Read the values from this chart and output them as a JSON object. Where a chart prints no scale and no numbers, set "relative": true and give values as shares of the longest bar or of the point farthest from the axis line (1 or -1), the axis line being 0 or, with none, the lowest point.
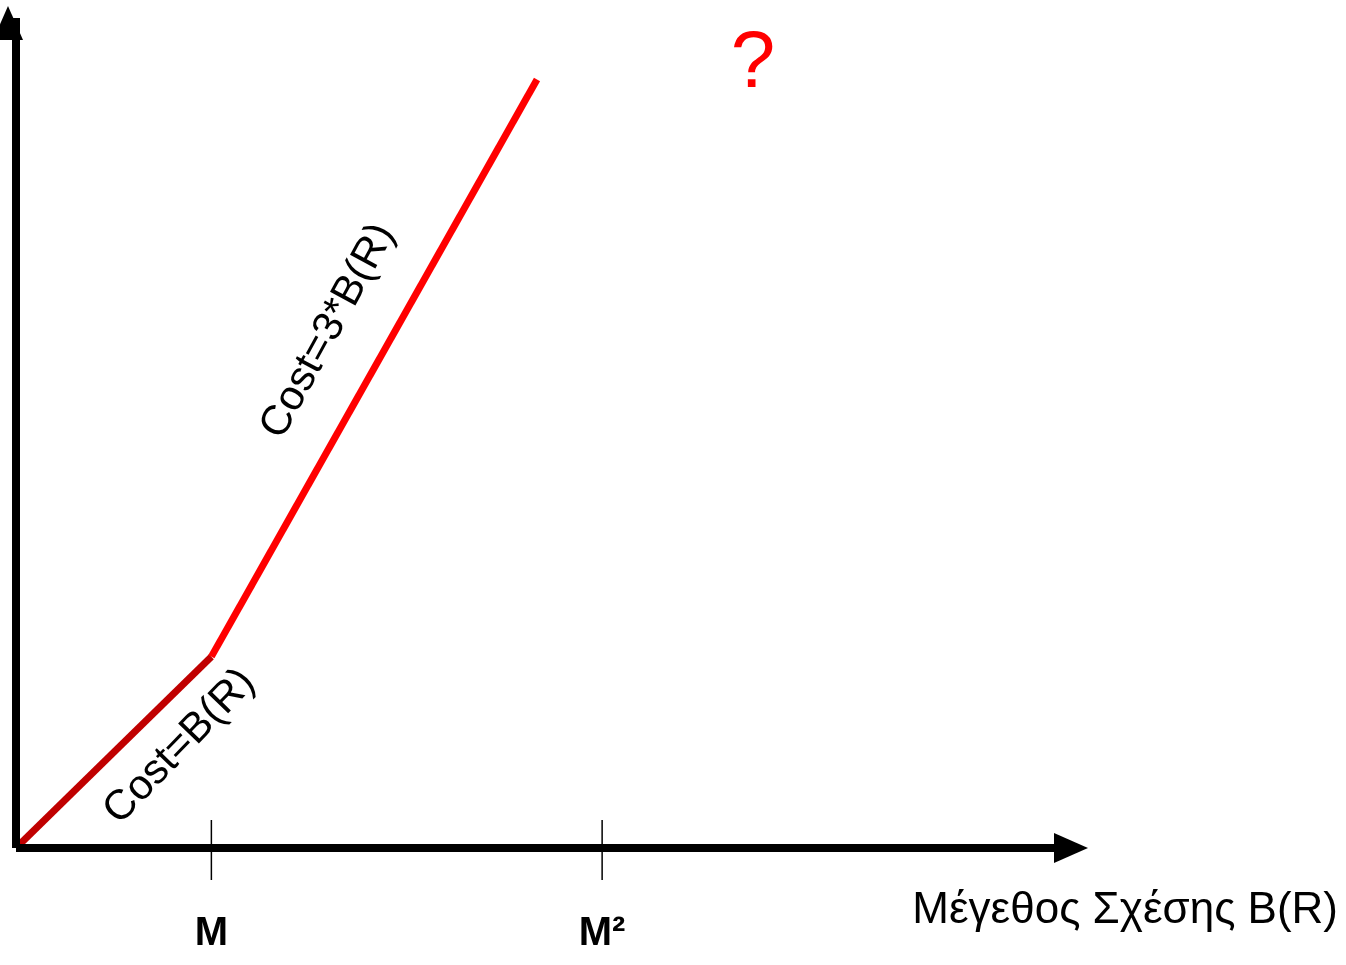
{
  "chart_data": {
    "type": "line",
    "relative": true,
    "xlabel": "Μέγεθος Σχέσης B(R)",
    "categories": [
      null,
      null,
      null,
      "M",
      null,
      null,
      null,
      null,
      null,
      "M²",
      null,
      null,
      null,
      null,
      null,
      null,
      null
    ],
    "series": [
      {
        "color": "#c00000",
        "values": [
          0,
          null,
          null,
          0.249,
          null,
          null,
          null,
          null,
          null,
          null,
          null,
          null,
          null,
          null,
          null,
          null,
          null
        ]
      },
      {
        "color": "#ff0000",
        "values": [
          null,
          null,
          null,
          0.249,
          null,
          null,
          null,
          null,
          1,
          null,
          null,
          null,
          null,
          null,
          null,
          null,
          null
        ]
      }
    ],
    "annotations": [
      "Cost=B(R)",
      "Cost=3*B(R)",
      "?"
    ],
    "marker": "none",
    "line_style": "solid"
  }
}
